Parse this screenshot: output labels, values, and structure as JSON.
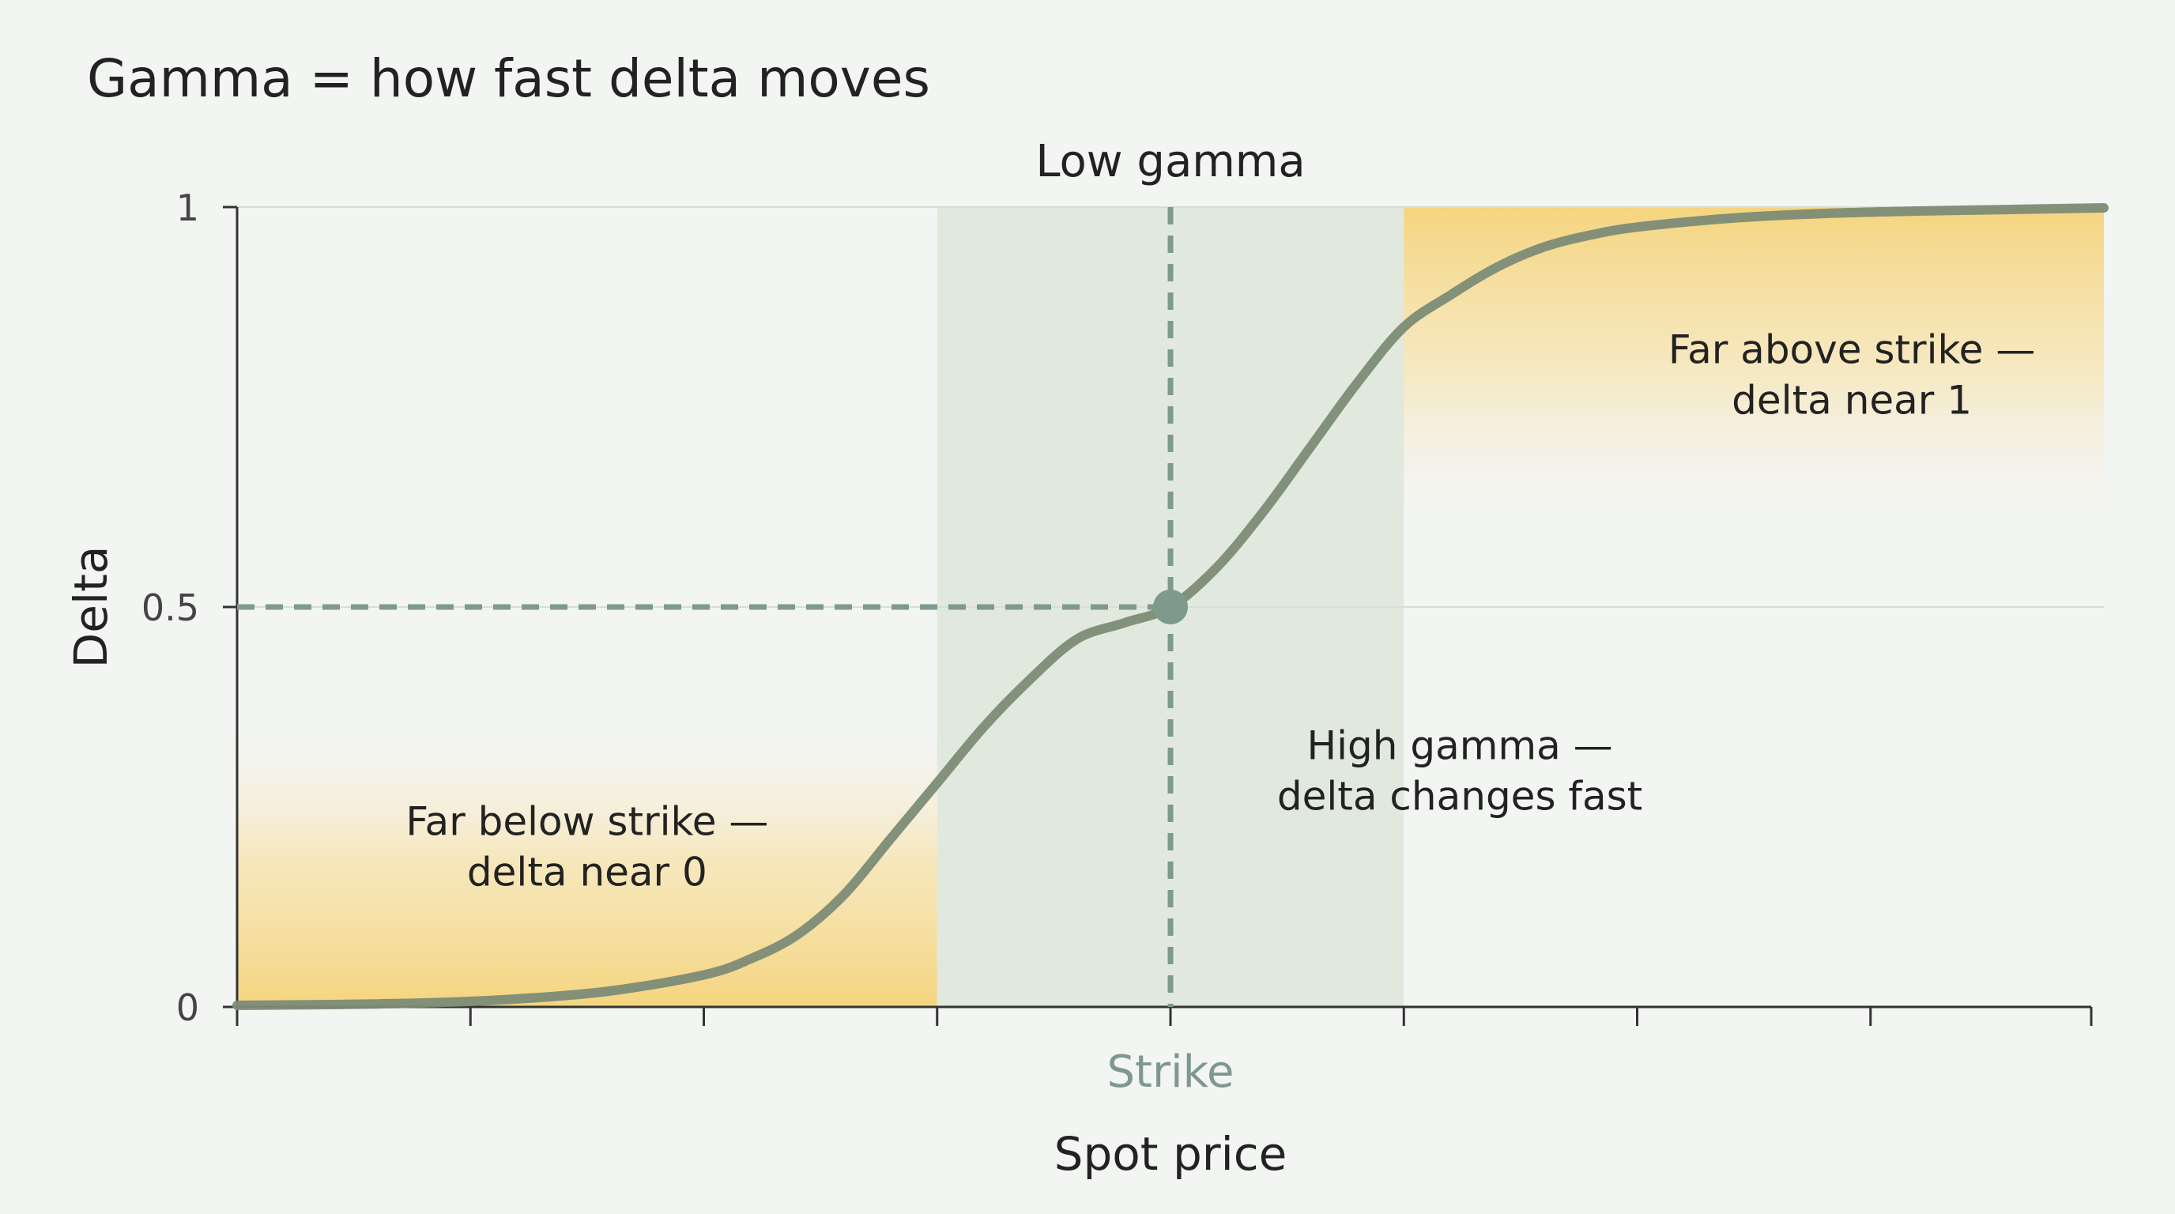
{
  "title": "Gamma = how fast delta moves",
  "colors": {
    "background": "#f3f5f3",
    "curve": "#7c8c76",
    "curve_highlight": "#a89558",
    "guide": "#7e9a8c",
    "zone_center": "#dde6da",
    "zone_edge": "#f5cf6a",
    "text": "#222222",
    "strike_label": "#7e9890"
  },
  "chart_data": {
    "type": "line",
    "title": "Gamma = how fast delta moves",
    "xlabel": "Spot price",
    "ylabel": "Delta",
    "xlim": [
      -1.0,
      1.0
    ],
    "ylim": [
      0,
      1
    ],
    "yticks": [
      {
        "value": 0,
        "label": "0"
      },
      {
        "value": 0.5,
        "label": "0.5"
      },
      {
        "value": 1,
        "label": "1"
      }
    ],
    "xticks": [
      -1.0,
      -0.75,
      -0.5,
      -0.25,
      0.0,
      0.25,
      0.5,
      0.75,
      1.0
    ],
    "series": [
      {
        "x": [
          -1.0,
          -0.9,
          -0.8,
          -0.7,
          -0.6,
          -0.5,
          -0.45,
          -0.4,
          -0.35,
          -0.3,
          -0.25,
          -0.2,
          -0.15,
          -0.1,
          -0.05,
          0.0,
          0.05,
          0.1,
          0.15,
          0.2,
          0.25,
          0.3,
          0.35,
          0.4,
          0.45,
          0.5,
          0.6,
          0.7,
          0.8,
          0.9,
          1.0
        ],
        "y": [
          0.002,
          0.003,
          0.005,
          0.01,
          0.02,
          0.04,
          0.06,
          0.09,
          0.14,
          0.21,
          0.28,
          0.35,
          0.41,
          0.46,
          0.48,
          0.5,
          0.55,
          0.62,
          0.7,
          0.78,
          0.85,
          0.89,
          0.925,
          0.95,
          0.965,
          0.975,
          0.986,
          0.992,
          0.995,
          0.997,
          0.999
        ]
      }
    ],
    "strike": {
      "x": 0.0,
      "delta": 0.5,
      "label": "Strike"
    },
    "zones": [
      {
        "name": "far-below",
        "x": [
          -1.0,
          -0.25
        ],
        "label_lines": [
          "Far below strike —",
          "delta near 0"
        ]
      },
      {
        "name": "center",
        "x": [
          -0.25,
          0.25
        ],
        "label_lines": [
          "High gamma —",
          "delta changes fast"
        ]
      },
      {
        "name": "far-above",
        "x": [
          0.25,
          1.0
        ],
        "label_lines": [
          "Far above strike —",
          "delta near 1"
        ]
      }
    ],
    "annotations": [
      {
        "text": "Low gamma",
        "position": "top-center"
      }
    ]
  }
}
